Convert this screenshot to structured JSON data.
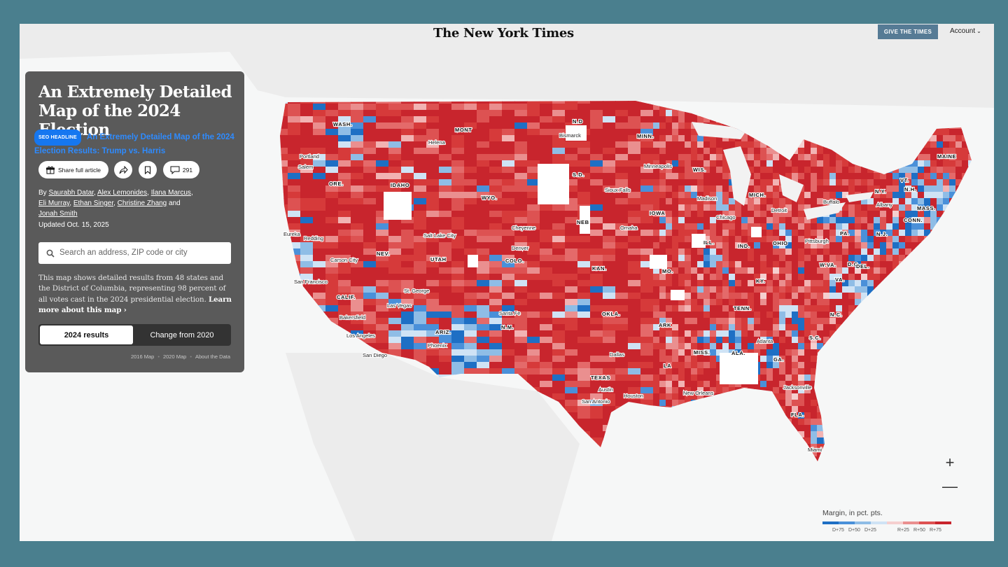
{
  "header": {
    "logo": "The New York Times",
    "give_button": "GIVE THE TIMES",
    "account": "Account"
  },
  "article": {
    "headline": "An Extremely Detailed Map of the 2024 Election",
    "seo_badge": "SEO HEADLINE",
    "seo_headline": "An Extremely Detailed Map of the 2024 Election Results: Trump vs. Harris",
    "share_label": "Share full article",
    "comment_count": "291",
    "byline_prefix": "By",
    "authors": [
      "Saurabh Datar",
      "Alex Lemonides",
      "Ilana Marcus",
      "Eli Murray",
      "Ethan Singer",
      "Christine Zhang",
      "Jonah Smith"
    ],
    "byline_and": "and",
    "updated": "Updated Oct. 15, 2025",
    "search_placeholder": "Search an address, ZIP code or city",
    "description": "This map shows detailed results from 48 states and the District of Columbia, representing 98 percent of all votes cast in the 2024 presidential election.",
    "learn_more": "Learn more about this map ›",
    "toggle_active": "2024 results",
    "toggle_other": "Change from 2020",
    "links": [
      "2016 Map",
      "2020 Map",
      "About the Data"
    ]
  },
  "map": {
    "states": [
      "WASH.",
      "ORE.",
      "CALIF.",
      "IDAHO",
      "NEV.",
      "MONT",
      "WYO.",
      "UTAH",
      "ARIZ.",
      "COLO.",
      "N.M.",
      "N.D",
      "S.D.",
      "NEB",
      "KAN.",
      "OKLA.",
      "TEXAS",
      "MINN.",
      "IOWA",
      "MO.",
      "ARK",
      "LA",
      "WIS.",
      "ILL.",
      "MICH.",
      "IND.",
      "OHIO",
      "KY.",
      "TENN.",
      "MISS.",
      "ALA.",
      "GA.",
      "FLA.",
      "S.C.",
      "N.C.",
      "VA.",
      "W.VA.",
      "PA.",
      "N.Y.",
      "VT.",
      "N.H.",
      "MAINE",
      "MASS.",
      "CONN.",
      "N.J.",
      "D.C.",
      "DEL."
    ],
    "cities": [
      "Portland",
      "Salem",
      "Eureka",
      "Redding",
      "Carson City",
      "San Francisco",
      "Bakersfield",
      "Los Angeles",
      "San Diego",
      "Las Vegas",
      "St. George",
      "Phoenix",
      "Helena",
      "Bismarck",
      "Salt Lake City",
      "Cheyenne",
      "Denver",
      "Santa Fe",
      "Sioux Falls",
      "Omaha",
      "Minneapolis",
      "Madison",
      "Chicago",
      "Detroit",
      "Buffalo",
      "Albany",
      "Pittsburgh",
      "Dallas",
      "Austin",
      "San Antonio",
      "Houston",
      "New Orleans",
      "Atlanta",
      "Jacksonville",
      "Miami"
    ]
  },
  "controls": {
    "zoom_in": "+",
    "zoom_out": "—"
  },
  "legend": {
    "title": "Margin, in pct. pts.",
    "ticks": [
      "D+75",
      "D+50",
      "D+25",
      "R+25",
      "R+50",
      "R+75"
    ],
    "colors": [
      "#1e6fc4",
      "#4a90d9",
      "#8fbde6",
      "#cfe3f5",
      "#f5cfcf",
      "#ea8f8f",
      "#dd5252",
      "#c8252d"
    ]
  }
}
